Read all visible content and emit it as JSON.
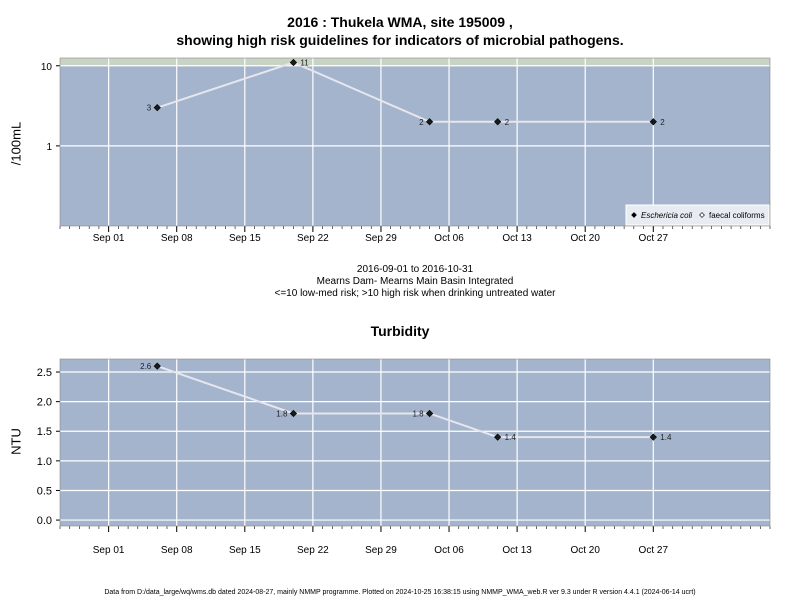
{
  "colors": {
    "panel_bg": "#a4b4cc",
    "threshold_band": "#c9d3c3",
    "grid": "#ffffff",
    "line": "#e6e6ee",
    "point": "#1a1a1a"
  },
  "chart_data": [
    {
      "type": "line",
      "title_line1": "2016 : Thukela WMA, site 195009 ,",
      "title_line2": "showing high risk guidelines for indicators of microbial pathogens.",
      "ylabel": "/100mL",
      "yscale": "log",
      "ylim": [
        0.1,
        12.5
      ],
      "y_ticks": [
        1,
        10
      ],
      "y_tick_labels": [
        "1",
        "10"
      ],
      "high_risk_threshold": 10,
      "x_range": [
        "2016-08-27",
        "2016-11-08"
      ],
      "x_ticks": [
        "2016-09-01",
        "2016-09-08",
        "2016-09-15",
        "2016-09-22",
        "2016-09-29",
        "2016-10-06",
        "2016-10-13",
        "2016-10-20",
        "2016-10-27"
      ],
      "x_tick_labels": [
        "Sep 01",
        "Sep 08",
        "Sep 15",
        "Sep 22",
        "Sep 29",
        "Oct 06",
        "Oct 13",
        "Oct 20",
        "Oct 27"
      ],
      "series": [
        {
          "name": "Eschericia coli",
          "x": [
            "2016-09-06",
            "2016-09-20",
            "2016-10-04",
            "2016-10-11",
            "2016-10-27"
          ],
          "y": [
            3,
            11,
            2,
            2,
            2
          ],
          "labels": [
            "3",
            "11",
            "2",
            "2",
            "2"
          ]
        }
      ],
      "legend": {
        "position": "bottom-right",
        "items": [
          {
            "label": "Eschericia coli",
            "marker": "filled-diamond",
            "italic": true
          },
          {
            "label": "faecal coliforms",
            "marker": "open-diamond",
            "italic": false
          }
        ]
      },
      "grid": true
    },
    {
      "type": "line",
      "title": "Turbidity",
      "ylabel": "NTU",
      "ylim": [
        -0.1,
        2.72
      ],
      "y_ticks": [
        0,
        0.5,
        1,
        1.5,
        2,
        2.5
      ],
      "y_tick_labels": [
        "0.0",
        "0.5",
        "1.0",
        "1.5",
        "2.0",
        "2.5"
      ],
      "x_range": [
        "2016-08-27",
        "2016-11-08"
      ],
      "x_ticks": [
        "2016-09-01",
        "2016-09-08",
        "2016-09-15",
        "2016-09-22",
        "2016-09-29",
        "2016-10-06",
        "2016-10-13",
        "2016-10-20",
        "2016-10-27"
      ],
      "x_tick_labels": [
        "Sep 01",
        "Sep 08",
        "Sep 15",
        "Sep 22",
        "Sep 29",
        "Oct 06",
        "Oct 13",
        "Oct 20",
        "Oct 27"
      ],
      "series": [
        {
          "x": [
            "2016-09-06",
            "2016-09-20",
            "2016-10-04",
            "2016-10-11",
            "2016-10-27"
          ],
          "y": [
            2.6,
            1.8,
            1.8,
            1.4,
            1.4
          ],
          "labels": [
            "2.6",
            "1.8",
            "1.8",
            "1.4",
            "1.4"
          ]
        }
      ],
      "grid": true
    }
  ],
  "caption": {
    "date_range": "2016-09-01 to 2016-10-31",
    "site": "Mearns Dam- Mearns Main Basin Integrated",
    "risk_note": "<=10 low-med risk; >10 high risk when drinking untreated water"
  },
  "footer": "Data from D:/data_large/wq/wms.db dated 2024-08-27, mainly NMMP programme. Plotted on 2024-10-25 16:38:15 using NMMP_WMA_web.R ver 9.3 under R version 4.4.1 (2024-06-14 ucrt)"
}
